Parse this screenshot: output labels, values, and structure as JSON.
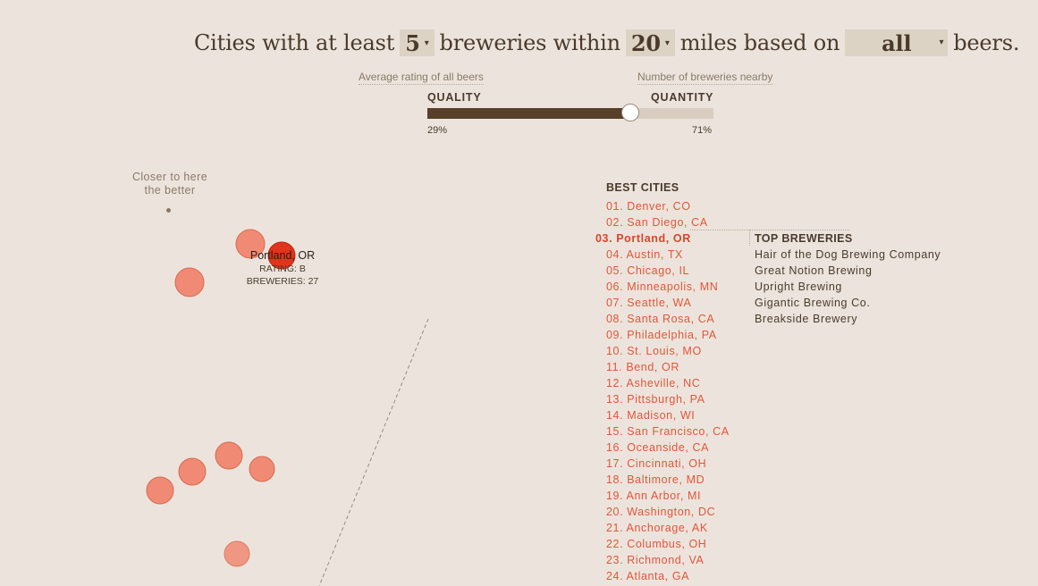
{
  "headline": {
    "part1": "Cities with at least",
    "min_breweries": "5",
    "part2": "breweries within",
    "miles": "20",
    "part3": "miles based on",
    "beer_filter": "all",
    "part4": "beers.",
    "caret_icon": "chevron-down-icon"
  },
  "slider": {
    "left_hint": "Average rating of all beers",
    "right_hint": "Number of breweries nearby",
    "left_label": "QUALITY",
    "right_label": "QUANTITY",
    "quality_pct": "29%",
    "quantity_pct": "71%",
    "quality_value": 0.29,
    "quantity_value": 0.71
  },
  "chart": {
    "closer_label": "Closer to here\nthe better",
    "bubble_color": "#f08a74",
    "highlight_color": "#e0341c",
    "tooltip": {
      "city_prefix": "Portland",
      "city_suffix": ", OR",
      "rating": "RATING: B",
      "breweries": "BREWERIES: 27"
    }
  },
  "best_cities": {
    "title": "BEST CITIES",
    "items": [
      "01. Denver, CO",
      "02. San Diego, CA",
      "03. Portland, OR",
      "04. Austin, TX",
      "05. Chicago, IL",
      "06. Minneapolis, MN",
      "07. Seattle, WA",
      "08. Santa Rosa, CA",
      "09. Philadelphia, PA",
      "10. St. Louis, MO",
      "11. Bend, OR",
      "12. Asheville, NC",
      "13. Pittsburgh, PA",
      "14. Madison, WI",
      "15. San Francisco, CA",
      "16. Oceanside, CA",
      "17. Cincinnati, OH",
      "18. Baltimore, MD",
      "19. Ann Arbor, MI",
      "20. Washington, DC",
      "21. Anchorage, AK",
      "22. Columbus, OH",
      "23. Richmond, VA",
      "24. Atlanta, GA"
    ],
    "active_index": 2
  },
  "top_breweries": {
    "title": "TOP BREWERIES",
    "items": [
      "Hair of the Dog Brewing Company",
      "Great Notion Brewing",
      "Upright Brewing",
      "Gigantic Brewing Co.",
      "Breakside Brewery"
    ]
  }
}
